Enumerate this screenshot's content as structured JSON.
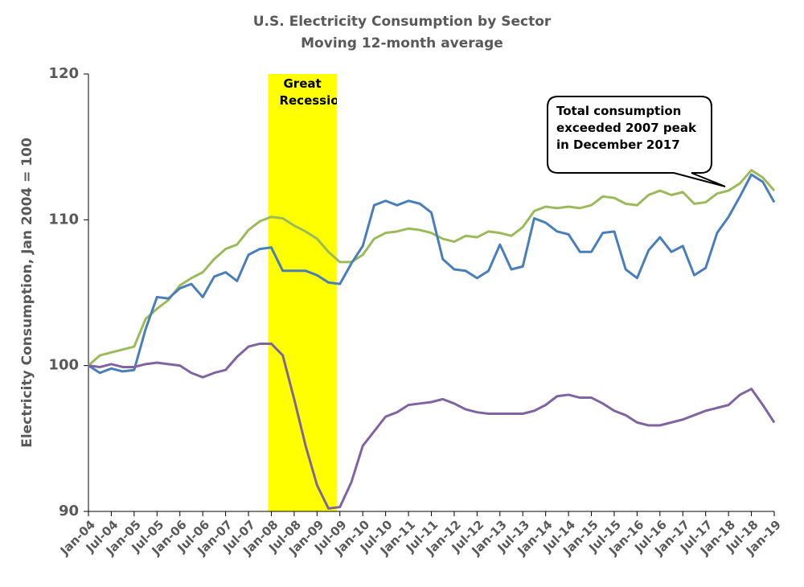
{
  "chart_data": {
    "type": "line",
    "title": "U.S. Electricity Consumption by Sector",
    "subtitle": "Moving 12-month average",
    "y_label": "Electricity Consumption, Jan 2004 = 100",
    "categories": [
      "Jan-04",
      null,
      "Jul-04",
      null,
      "Jan-05",
      null,
      "Jul-05",
      null,
      "Jan-06",
      null,
      "Jul-06",
      null,
      "Jan-07",
      null,
      "Jul-07",
      null,
      "Jan-08",
      null,
      "Jul-08",
      null,
      "Jan-09",
      null,
      "Jul-09",
      null,
      "Jan-10",
      null,
      "Jul-10",
      null,
      "Jan-11",
      null,
      "Jul-11",
      null,
      "Jan-12",
      null,
      "Jul-12",
      null,
      "Jan-13",
      null,
      "Jul-13",
      null,
      "Jan-14",
      null,
      "Jul-14",
      null,
      "Jan-15",
      null,
      "Jul-15",
      null,
      "Jan-16",
      null,
      "Jul-16",
      null,
      "Jan-17",
      null,
      "Jul-17",
      null,
      "Jan-18",
      null,
      "Jul-18",
      null,
      "Jan-19"
    ],
    "series": [
      {
        "color": "#9bbb59",
        "values": [
          100,
          100.7,
          100.9,
          101.1,
          101.3,
          103.2,
          103.9,
          104.5,
          105.5,
          106.0,
          106.4,
          107.3,
          108,
          108.3,
          109.3,
          109.9,
          110.2,
          110.1,
          109.6,
          109.2,
          108.7,
          107.8,
          107.1,
          107.1,
          107.6,
          108.7,
          109.1,
          109.2,
          109.4,
          109.3,
          109.1,
          108.7,
          108.5,
          108.9,
          108.8,
          109.2,
          109.1,
          108.9,
          109.5,
          110.6,
          110.9,
          110.8,
          110.9,
          110.8,
          111,
          111.6,
          111.5,
          111.1,
          111,
          111.7,
          112,
          111.7,
          111.9,
          111.1,
          111.2,
          111.8,
          112,
          112.5,
          113.4,
          112.9,
          112
        ]
      },
      {
        "color": "#4a7ebb",
        "values": [
          100,
          99.5,
          99.8,
          99.6,
          99.7,
          102.5,
          104.7,
          104.6,
          105.3,
          105.6,
          104.7,
          106.1,
          106.4,
          105.8,
          107.6,
          108,
          108.1,
          106.5,
          106.5,
          106.5,
          106.2,
          105.7,
          105.6,
          107,
          108.2,
          111,
          111.3,
          111,
          111.3,
          111.1,
          110.5,
          107.3,
          106.6,
          106.5,
          106,
          106.5,
          108.3,
          106.6,
          106.8,
          110.1,
          109.8,
          109.2,
          109,
          107.8,
          107.8,
          109.1,
          109.2,
          106.6,
          106,
          107.9,
          108.8,
          107.8,
          108.2,
          106.2,
          106.7,
          109.1,
          110.2,
          111.6,
          113.1,
          112.6,
          111.2
        ]
      },
      {
        "color": "#8064a2",
        "values": [
          100,
          99.9,
          100.1,
          99.9,
          99.9,
          100.1,
          100.2,
          100.1,
          100,
          99.5,
          99.2,
          99.5,
          99.7,
          100.6,
          101.3,
          101.5,
          101.5,
          100.7,
          97.7,
          94.5,
          91.8,
          90.2,
          90.3,
          92,
          94.5,
          95.5,
          96.5,
          96.8,
          97.3,
          97.4,
          97.5,
          97.7,
          97.4,
          97,
          96.8,
          96.7,
          96.7,
          96.7,
          96.7,
          96.9,
          97.3,
          97.9,
          98,
          97.8,
          97.8,
          97.4,
          96.9,
          96.6,
          96.1,
          95.9,
          95.9,
          96.1,
          96.3,
          96.6,
          96.9,
          97.1,
          97.3,
          98,
          98.4,
          97.3,
          96.1
        ]
      }
    ],
    "ylim": [
      90,
      120
    ],
    "yticks": [
      90,
      100,
      110,
      120
    ],
    "recession": {
      "label": "Great Recession",
      "start": "Jan-08",
      "end": "Jul-09",
      "color": "#ffff00"
    },
    "annotation": "Total consumption exceeded 2007 peak in December 2017"
  }
}
